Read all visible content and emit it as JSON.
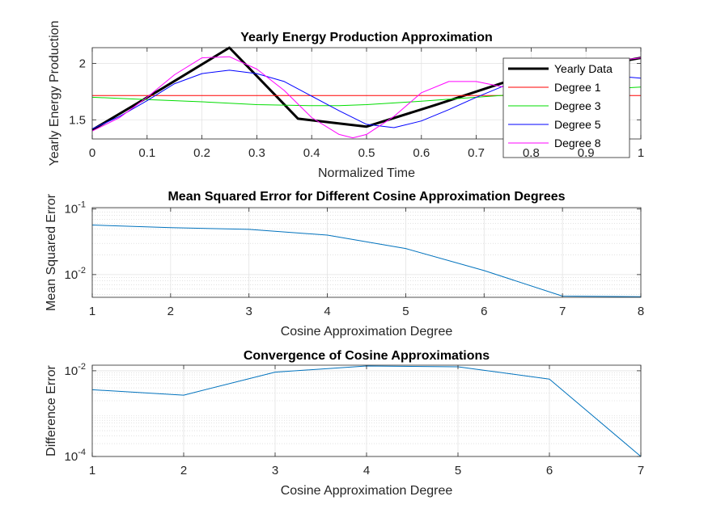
{
  "chart_data": [
    {
      "type": "line",
      "title": "Yearly Energy Production Approximation",
      "xlabel": "Normalized Time",
      "ylabel": "Yearly Energy Production",
      "xlim": [
        0,
        1
      ],
      "ylim": [
        1.33,
        2.14
      ],
      "xscale": "linear",
      "yscale": "linear",
      "grid": true,
      "legend_position": "top-right",
      "xticks": [
        0,
        0.1,
        0.2,
        0.3,
        0.4,
        0.5,
        0.6,
        0.7,
        0.8,
        0.9,
        1
      ],
      "xtick_labels": [
        "0",
        "0.1",
        "0.2",
        "0.3",
        "0.4",
        "0.5",
        "0.6",
        "0.7",
        "0.8",
        "0.9",
        "1"
      ],
      "yticks": [
        1.5,
        2
      ],
      "ytick_labels": [
        "1.5",
        "2"
      ],
      "series": [
        {
          "name": "Yearly Data",
          "color": "#000000",
          "width": 3,
          "x": [
            0,
            0.125,
            0.25,
            0.375,
            0.5,
            0.625,
            0.75,
            0.875,
            1
          ],
          "y": [
            1.41,
            1.77,
            2.14,
            1.51,
            1.44,
            1.63,
            1.83,
            1.94,
            2.05
          ]
        },
        {
          "name": "Degree 1",
          "color": "#ff0000",
          "width": 1,
          "x": [
            0,
            1
          ],
          "y": [
            1.715,
            1.715
          ]
        },
        {
          "name": "Degree 3",
          "color": "#00dd00",
          "width": 1,
          "x": [
            0,
            0.1,
            0.2,
            0.3,
            0.4,
            0.45,
            0.5,
            0.6,
            0.7,
            0.8,
            0.9,
            1
          ],
          "y": [
            1.7,
            1.68,
            1.66,
            1.635,
            1.625,
            1.625,
            1.635,
            1.665,
            1.7,
            1.735,
            1.765,
            1.79
          ]
        },
        {
          "name": "Degree 5",
          "color": "#0000ff",
          "width": 1,
          "x": [
            0,
            0.05,
            0.1,
            0.15,
            0.2,
            0.25,
            0.3,
            0.35,
            0.4,
            0.45,
            0.5,
            0.55,
            0.6,
            0.65,
            0.7,
            0.75,
            0.8,
            0.85,
            0.9,
            0.95,
            1
          ],
          "y": [
            1.42,
            1.53,
            1.67,
            1.82,
            1.91,
            1.94,
            1.91,
            1.84,
            1.71,
            1.58,
            1.46,
            1.43,
            1.49,
            1.59,
            1.7,
            1.8,
            1.87,
            1.9,
            1.9,
            1.89,
            1.87
          ]
        },
        {
          "name": "Degree 8",
          "color": "#ff00ff",
          "width": 1,
          "x": [
            0,
            0.05,
            0.1,
            0.15,
            0.2,
            0.25,
            0.3,
            0.35,
            0.4,
            0.45,
            0.475,
            0.5,
            0.55,
            0.6,
            0.65,
            0.7,
            0.75,
            0.8,
            0.85,
            0.9,
            0.95,
            1
          ],
          "y": [
            1.4,
            1.52,
            1.7,
            1.9,
            2.05,
            2.06,
            1.95,
            1.76,
            1.52,
            1.37,
            1.34,
            1.37,
            1.53,
            1.74,
            1.84,
            1.84,
            1.79,
            1.73,
            1.75,
            1.88,
            2.02,
            2.05
          ]
        }
      ]
    },
    {
      "type": "line",
      "title": "Mean Squared Error for Different Cosine Approximation Degrees",
      "xlabel": "Cosine Approximation Degree",
      "ylabel": "Mean Squared Error",
      "xlim": [
        1,
        8
      ],
      "ylim": [
        0.0045,
        0.105
      ],
      "xscale": "linear",
      "yscale": "log",
      "grid": true,
      "minor_grid": true,
      "xticks": [
        1,
        2,
        3,
        4,
        5,
        6,
        7,
        8
      ],
      "xtick_labels": [
        "1",
        "2",
        "3",
        "4",
        "5",
        "6",
        "7",
        "8"
      ],
      "yticks": [
        0.01,
        0.1
      ],
      "ytick_labels": [
        "10^-2",
        "10^-1"
      ],
      "series": [
        {
          "color": "#0072bd",
          "width": 1,
          "x": [
            1,
            2,
            3,
            4,
            5,
            6,
            7,
            8
          ],
          "y": [
            0.057,
            0.052,
            0.049,
            0.04,
            0.025,
            0.0115,
            0.0047,
            0.0046
          ]
        }
      ]
    },
    {
      "type": "line",
      "title": "Convergence of Cosine Approximations",
      "xlabel": "Cosine Approximation Degree",
      "ylabel": "Difference Error",
      "xlim": [
        1,
        7
      ],
      "ylim": [
        0.0001,
        0.0135
      ],
      "xscale": "linear",
      "yscale": "log",
      "grid": true,
      "minor_grid": true,
      "xticks": [
        1,
        2,
        3,
        4,
        5,
        6,
        7
      ],
      "xtick_labels": [
        "1",
        "2",
        "3",
        "4",
        "5",
        "6",
        "7"
      ],
      "yticks": [
        0.0001,
        0.01
      ],
      "ytick_labels": [
        "10^-4",
        "10^-2"
      ],
      "series": [
        {
          "color": "#0072bd",
          "width": 1,
          "x": [
            1,
            2,
            3,
            4,
            5,
            6,
            7
          ],
          "y": [
            0.0036,
            0.0027,
            0.0093,
            0.0129,
            0.0124,
            0.0064,
            0.0001
          ]
        }
      ]
    }
  ]
}
